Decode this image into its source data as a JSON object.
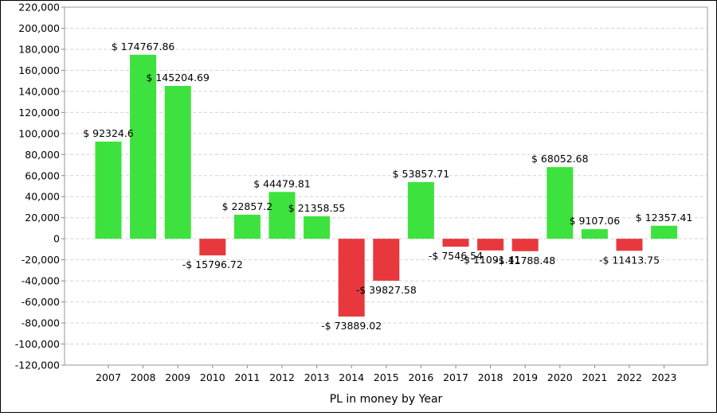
{
  "chart_data": {
    "type": "bar",
    "title": "",
    "xlabel": "PL in money by Year",
    "ylabel": "",
    "ylim": [
      -120000,
      220000
    ],
    "y_ticks": [
      "220,000",
      "200,000",
      "180,000",
      "160,000",
      "140,000",
      "120,000",
      "100,000",
      "80,000",
      "60,000",
      "40,000",
      "20,000",
      "0",
      "-20,000",
      "-40,000",
      "-60,000",
      "-80,000",
      "-100,000",
      "-120,000"
    ],
    "grid": true,
    "categories": [
      "2007",
      "2008",
      "2009",
      "2010",
      "2011",
      "2012",
      "2013",
      "2014",
      "2015",
      "2016",
      "2017",
      "2018",
      "2019",
      "2020",
      "2021",
      "2022",
      "2023"
    ],
    "values": [
      92324.6,
      174767.86,
      145204.69,
      -15796.72,
      22857.2,
      44479.81,
      21358.55,
      -73889.02,
      -39827.58,
      53857.71,
      -7546.54,
      -11091.41,
      -11788.48,
      68052.68,
      9107.06,
      -11413.75,
      12357.41
    ],
    "data_labels": [
      "$ 92324.6",
      "$ 174767.86",
      "$ 145204.69",
      "-$ 15796.72",
      "$ 22857.2",
      "$ 44479.81",
      "$ 21358.55",
      "-$ 73889.02",
      "-$ 39827.58",
      "$ 53857.71",
      "-$ 7546.54",
      "-$ 11091.41",
      "-$ 11788.48",
      "$ 68052.68",
      "$ 9107.06",
      "-$ 11413.75",
      "$ 12357.41"
    ],
    "colors": {
      "positive": "#3ee23e",
      "negative": "#e8383d",
      "grid": "#d4d4d4",
      "plot_border": "#999999"
    }
  }
}
